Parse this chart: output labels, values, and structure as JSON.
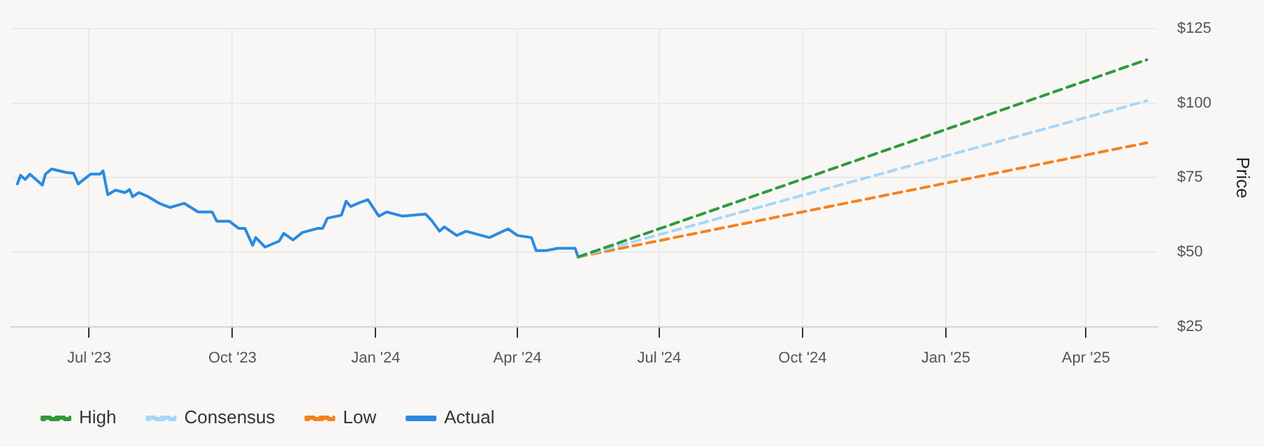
{
  "chart_data": {
    "type": "line",
    "ylabel": "Price",
    "xlim": [
      "2023-05-12",
      "2025-05-17"
    ],
    "xticks": [
      {
        "value": "2023-07-01",
        "label": "Jul '23"
      },
      {
        "value": "2023-10-01",
        "label": "Oct '23"
      },
      {
        "value": "2024-01-01",
        "label": "Jan '24"
      },
      {
        "value": "2024-04-01",
        "label": "Apr '24"
      },
      {
        "value": "2024-07-01",
        "label": "Jul '24"
      },
      {
        "value": "2024-10-01",
        "label": "Oct '24"
      },
      {
        "value": "2025-01-01",
        "label": "Jan '25"
      },
      {
        "value": "2025-04-01",
        "label": "Apr '25"
      }
    ],
    "ylim": [
      25,
      125
    ],
    "yticks": [
      {
        "value": 25,
        "label": "$25"
      },
      {
        "value": 50,
        "label": "$50"
      },
      {
        "value": 75,
        "label": "$75"
      },
      {
        "value": 100,
        "label": "$100"
      },
      {
        "value": 125,
        "label": "$125"
      }
    ],
    "grid": true,
    "legend": "bottom left",
    "series": [
      {
        "name": "High",
        "color": "#2e9a3c",
        "line_style": "dashed",
        "x": [
          "2024-05-10",
          "2025-05-10"
        ],
        "values": [
          48.4,
          114.6
        ]
      },
      {
        "name": "Consensus",
        "color": "#a6d6fa",
        "line_style": "dashed",
        "x": [
          "2024-05-10",
          "2025-05-10"
        ],
        "values": [
          48.4,
          100.8
        ]
      },
      {
        "name": "Low",
        "color": "#f5821f",
        "line_style": "dashed",
        "x": [
          "2024-05-10",
          "2025-05-10"
        ],
        "values": [
          48.4,
          86.7
        ]
      },
      {
        "name": "Actual",
        "color": "#2b8ae2",
        "line_style": "solid",
        "x": [
          "2023-05-16",
          "2023-05-18",
          "2023-05-21",
          "2023-05-24",
          "2023-06-01",
          "2023-06-03",
          "2023-06-07",
          "2023-06-16",
          "2023-06-21",
          "2023-06-24",
          "2023-07-02",
          "2023-07-08",
          "2023-07-10",
          "2023-07-13",
          "2023-07-18",
          "2023-07-24",
          "2023-07-27",
          "2023-07-29",
          "2023-08-02",
          "2023-08-08",
          "2023-08-15",
          "2023-08-22",
          "2023-08-31",
          "2023-09-09",
          "2023-09-18",
          "2023-09-21",
          "2023-09-29",
          "2023-10-05",
          "2023-10-09",
          "2023-10-14",
          "2023-10-16",
          "2023-10-22",
          "2023-10-31",
          "2023-11-03",
          "2023-11-09",
          "2023-11-15",
          "2023-11-25",
          "2023-11-28",
          "2023-12-01",
          "2023-12-10",
          "2023-12-13",
          "2023-12-16",
          "2023-12-22",
          "2023-12-27",
          "2024-01-03",
          "2024-01-08",
          "2024-01-18",
          "2024-02-02",
          "2024-02-06",
          "2024-02-11",
          "2024-02-14",
          "2024-02-22",
          "2024-02-28",
          "2024-03-14",
          "2024-03-26",
          "2024-04-01",
          "2024-04-10",
          "2024-04-13",
          "2024-04-19",
          "2024-04-27",
          "2024-05-08",
          "2024-05-10"
        ],
        "values": [
          72.9,
          75.8,
          74.4,
          76.2,
          72.5,
          76.2,
          77.9,
          76.8,
          76.5,
          72.9,
          76.2,
          76.2,
          77.3,
          69.3,
          70.8,
          70.0,
          71.0,
          68.6,
          70.0,
          68.6,
          66.4,
          65.0,
          66.4,
          63.5,
          63.5,
          60.4,
          60.4,
          58.0,
          58.0,
          52.3,
          54.9,
          51.7,
          53.7,
          56.3,
          54.1,
          56.6,
          58.0,
          58.0,
          61.4,
          62.4,
          67.1,
          65.3,
          66.7,
          67.6,
          62.1,
          63.5,
          62.1,
          62.8,
          60.6,
          57.0,
          58.5,
          55.6,
          57.0,
          54.9,
          57.8,
          55.6,
          54.9,
          50.5,
          50.5,
          51.3,
          51.3,
          48.4
        ]
      }
    ]
  }
}
